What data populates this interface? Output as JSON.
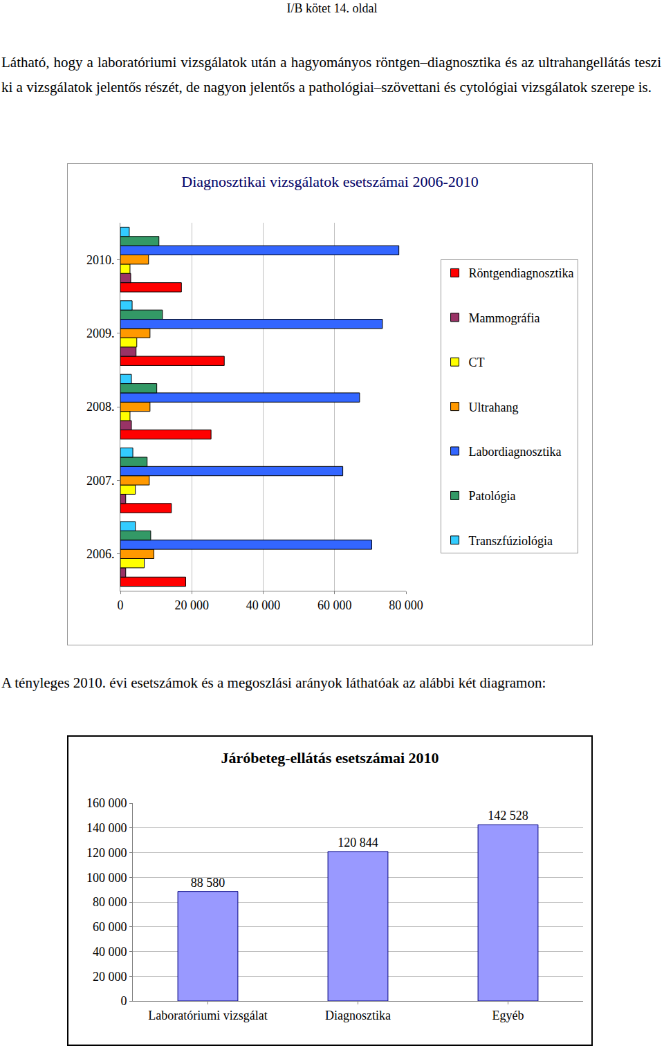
{
  "document": {
    "header": "I/B kötet 14. oldal",
    "paragraph": "Látható, hogy a laboratóriumi vizsgálatok után a hagyományos röntgen–diagnosztika és az ultrahangellátás teszi ki a vizsgálatok jelentős részét, de nagyon jelentős a pathológiai–szövettani és cytológiai vizsgálatok szerepe is.",
    "caption": "A tényleges 2010. évi esetszámok és a megoszlási arányok láthatóak az alábbi két diagramon:"
  },
  "chart_data": [
    {
      "type": "bar",
      "orientation": "horizontal",
      "title": "Diagnosztikai vizsgálatok esetszámai 2006-2010",
      "categories": [
        "2006.",
        "2007.",
        "2008.",
        "2009.",
        "2010."
      ],
      "series": [
        {
          "name": "Transzfúziológia",
          "color": "#33ccff",
          "values": [
            4200,
            3500,
            3100,
            3300,
            2500
          ]
        },
        {
          "name": "Patológia",
          "color": "#339966",
          "values": [
            8500,
            7500,
            10200,
            11800,
            10800
          ]
        },
        {
          "name": "Labordiagnosztika",
          "color": "#3366ff",
          "values": [
            70400,
            62300,
            67000,
            73400,
            78000
          ]
        },
        {
          "name": "Ultrahang",
          "color": "#ff9900",
          "values": [
            9400,
            8100,
            8300,
            8300,
            7900
          ]
        },
        {
          "name": "CT",
          "color": "#ffff00",
          "values": [
            6700,
            4200,
            2700,
            4600,
            2700
          ]
        },
        {
          "name": "Mammográfia",
          "color": "#993366",
          "values": [
            1500,
            1500,
            3100,
            4400,
            2900
          ]
        },
        {
          "name": "Röntgendiagnosztika",
          "color": "#ff0000",
          "values": [
            18300,
            14300,
            25400,
            29100,
            17100
          ]
        }
      ],
      "xlim": [
        0,
        80000
      ],
      "xticks": [
        0,
        {
          "value": 20000,
          "label": "20 000"
        },
        {
          "value": 40000,
          "label": "40 000"
        },
        {
          "value": 60000,
          "label": "60 000"
        },
        {
          "value": 80000,
          "label": "80 000"
        }
      ],
      "grid": true,
      "legend": "right"
    },
    {
      "type": "bar",
      "title": "Járóbeteg-ellátás esetszámai 2010",
      "categories": [
        "Laboratóriumi vizsgálat",
        "Diagnosztika",
        "Egyéb"
      ],
      "values": [
        88580,
        120844,
        142528
      ],
      "value_labels": [
        "88 580",
        "120 844",
        "142 528"
      ],
      "data_labels": true,
      "color": "#9999ff",
      "ylim": [
        0,
        160000
      ],
      "yticks": [
        0,
        {
          "value": 20000,
          "label": "20 000"
        },
        {
          "value": 40000,
          "label": "40 000"
        },
        {
          "value": 60000,
          "label": "60 000"
        },
        {
          "value": 80000,
          "label": "80 000"
        },
        {
          "value": 100000,
          "label": "100 000"
        },
        {
          "value": 120000,
          "label": "120 000"
        },
        {
          "value": 140000,
          "label": "140 000"
        },
        {
          "value": 160000,
          "label": "160 000"
        }
      ],
      "grid": true
    }
  ]
}
